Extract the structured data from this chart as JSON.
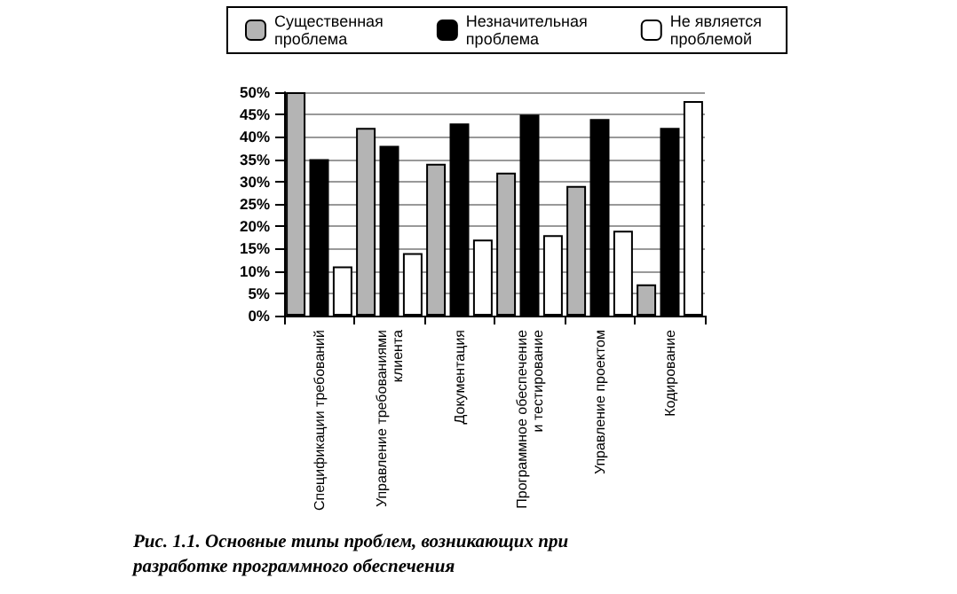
{
  "chart_data": {
    "type": "bar",
    "categories": [
      "Спецификации требований",
      "Управление требованиями\nклиента",
      "Документация",
      "Программное обеспечение\nи тестирование",
      "Управление проектом",
      "Кодирование"
    ],
    "series": [
      {
        "name": "Существенная\nпроблема",
        "color": "#b4b4b4",
        "values": [
          50,
          42,
          34,
          32,
          29,
          7
        ]
      },
      {
        "name": "Незначительная\nпроблема",
        "color": "#000000",
        "values": [
          35,
          38,
          43,
          45,
          44,
          42
        ]
      },
      {
        "name": "Не является\nпроблемой",
        "color": "#ffffff",
        "values": [
          11,
          14,
          17,
          18,
          19,
          48
        ]
      }
    ],
    "ylim": [
      0,
      50
    ],
    "yticks": [
      {
        "value": 0,
        "label": "0%"
      },
      {
        "value": 5,
        "label": "5%"
      },
      {
        "value": 10,
        "label": "10%"
      },
      {
        "value": 15,
        "label": "15%"
      },
      {
        "value": 20,
        "label": "20%"
      },
      {
        "value": 25,
        "label": "25%"
      },
      {
        "value": 30,
        "label": "30%"
      },
      {
        "value": 35,
        "label": "35%"
      },
      {
        "value": 40,
        "label": "40%"
      },
      {
        "value": 45,
        "label": "45%"
      },
      {
        "value": 50,
        "label": "50%"
      }
    ],
    "grid": "y",
    "legend": "top",
    "annotations": [
      "Рис. 1.1. Основные типы проблем, возникающих при\nразработке программного обеспечения"
    ]
  }
}
